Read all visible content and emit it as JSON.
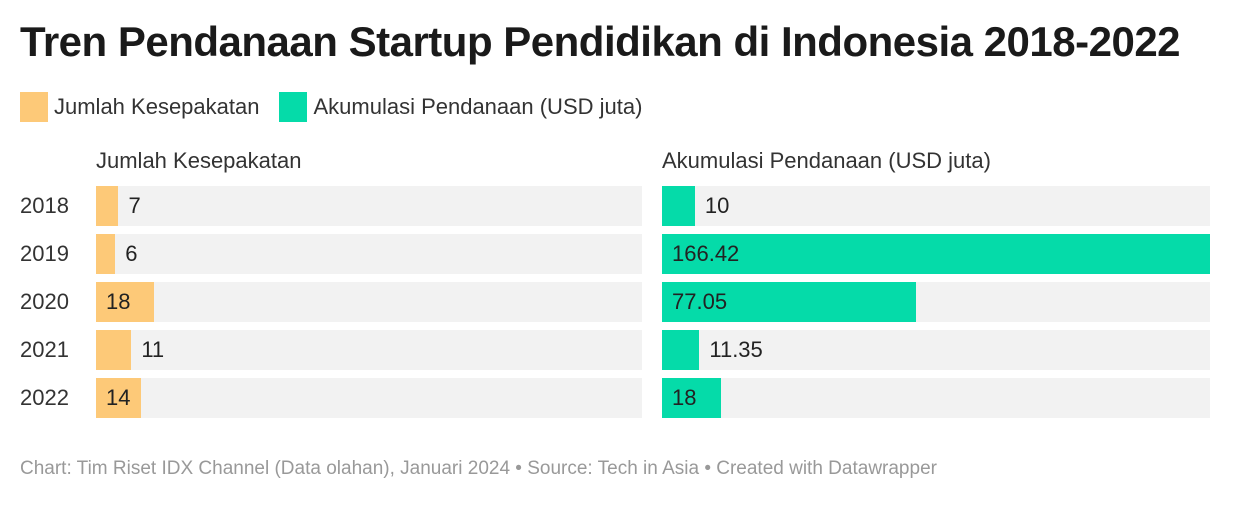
{
  "title": "Tren Pendanaan Startup Pendidikan di Indonesia 2018-2022",
  "legend": [
    {
      "label": "Jumlah Kesepakatan",
      "color": "#fdc978"
    },
    {
      "label": "Akumulasi Pendanaan (USD juta)",
      "color": "#05dba9"
    }
  ],
  "footer": "Chart: Tim Riset IDX Channel (Data olahan), Januari 2024 • Source: Tech in Asia • Created with Datawrapper",
  "chart_data": {
    "type": "bar",
    "orientation": "horizontal",
    "categories": [
      "2018",
      "2019",
      "2020",
      "2021",
      "2022"
    ],
    "series": [
      {
        "name": "Jumlah Kesepakatan",
        "values": [
          7,
          6,
          18,
          11,
          14
        ],
        "labels": [
          "7",
          "6",
          "18",
          "11",
          "14"
        ],
        "color": "#fdc978",
        "xlim": [
          0,
          170
        ]
      },
      {
        "name": "Akumulasi Pendanaan (USD juta)",
        "values": [
          10,
          166.42,
          77.05,
          11.35,
          18
        ],
        "labels": [
          "10",
          "166.42",
          "77.05",
          "11.35",
          "18"
        ],
        "color": "#05dba9",
        "xlim": [
          0,
          166.42
        ]
      }
    ]
  }
}
